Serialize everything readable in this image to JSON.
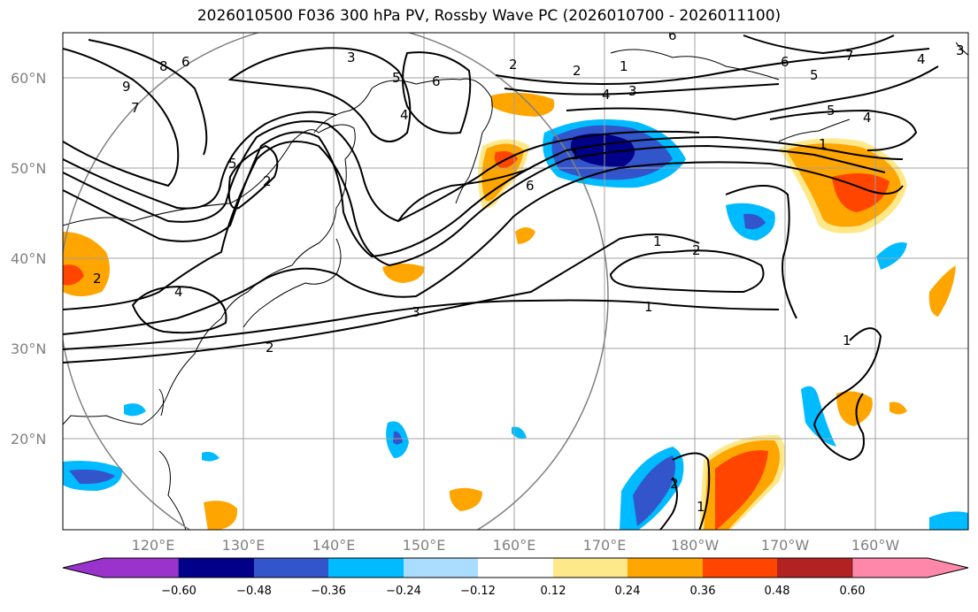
{
  "title": "2026010500 F036 300 hPa PV, Rossby Wave PC (2026010700 - 2026011100)",
  "lat_labels": [
    "60°N",
    "50°N",
    "40°N",
    "30°N",
    "20°N"
  ],
  "lon_labels": [
    "120°E",
    "130°E",
    "140°E",
    "150°E",
    "160°E",
    "170°E",
    "180°W",
    "170°W",
    "160°W"
  ],
  "colorbar": {
    "ticks": [
      "−0.60",
      "−0.48",
      "−0.36",
      "−0.24",
      "−0.12",
      "0.12",
      "0.24",
      "0.36",
      "0.48",
      "0.60"
    ],
    "colors": [
      "#9933cc",
      "#000088",
      "#3355cc",
      "#00bbff",
      "#aaddff",
      "#ffffff",
      "#ffe88a",
      "#ffa500",
      "#ff4500",
      "#b22222",
      "#ff88aa"
    ]
  },
  "contour_labels": [
    "8",
    "9",
    "7",
    "6",
    "5",
    "2",
    "3",
    "5",
    "6",
    "4",
    "2",
    "2",
    "1",
    "4",
    "3",
    "1",
    "6",
    "7",
    "5",
    "4",
    "3",
    "5",
    "6",
    "4",
    "2",
    "6",
    "1",
    "2",
    "1",
    "3",
    "2",
    "4",
    "1",
    "1",
    "2",
    "1"
  ],
  "colors": {
    "grid": "#a0a0a0",
    "axis_labels": "#808080"
  }
}
